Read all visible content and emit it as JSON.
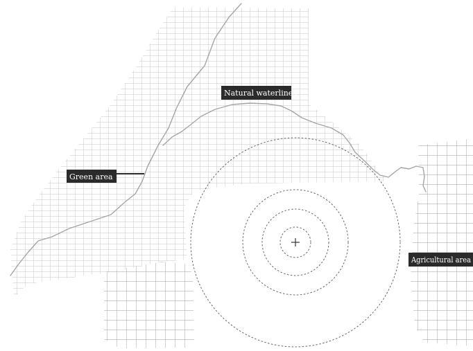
{
  "labels": {
    "natural_waterlines": "Natural waterlines",
    "green_area": "Green area",
    "agricultural_area": "Agricultural area"
  },
  "colors": {
    "dense_grid": "#c4c4c4",
    "coarse_grid": "#9a9a9a",
    "waterline": "#a5a5a5",
    "label_bg": "#2b2b2b",
    "label_text": "#ffffff",
    "range_rings": "#666666",
    "center_mark": "#333333"
  },
  "icons": {
    "center": "crosshair-icon"
  }
}
